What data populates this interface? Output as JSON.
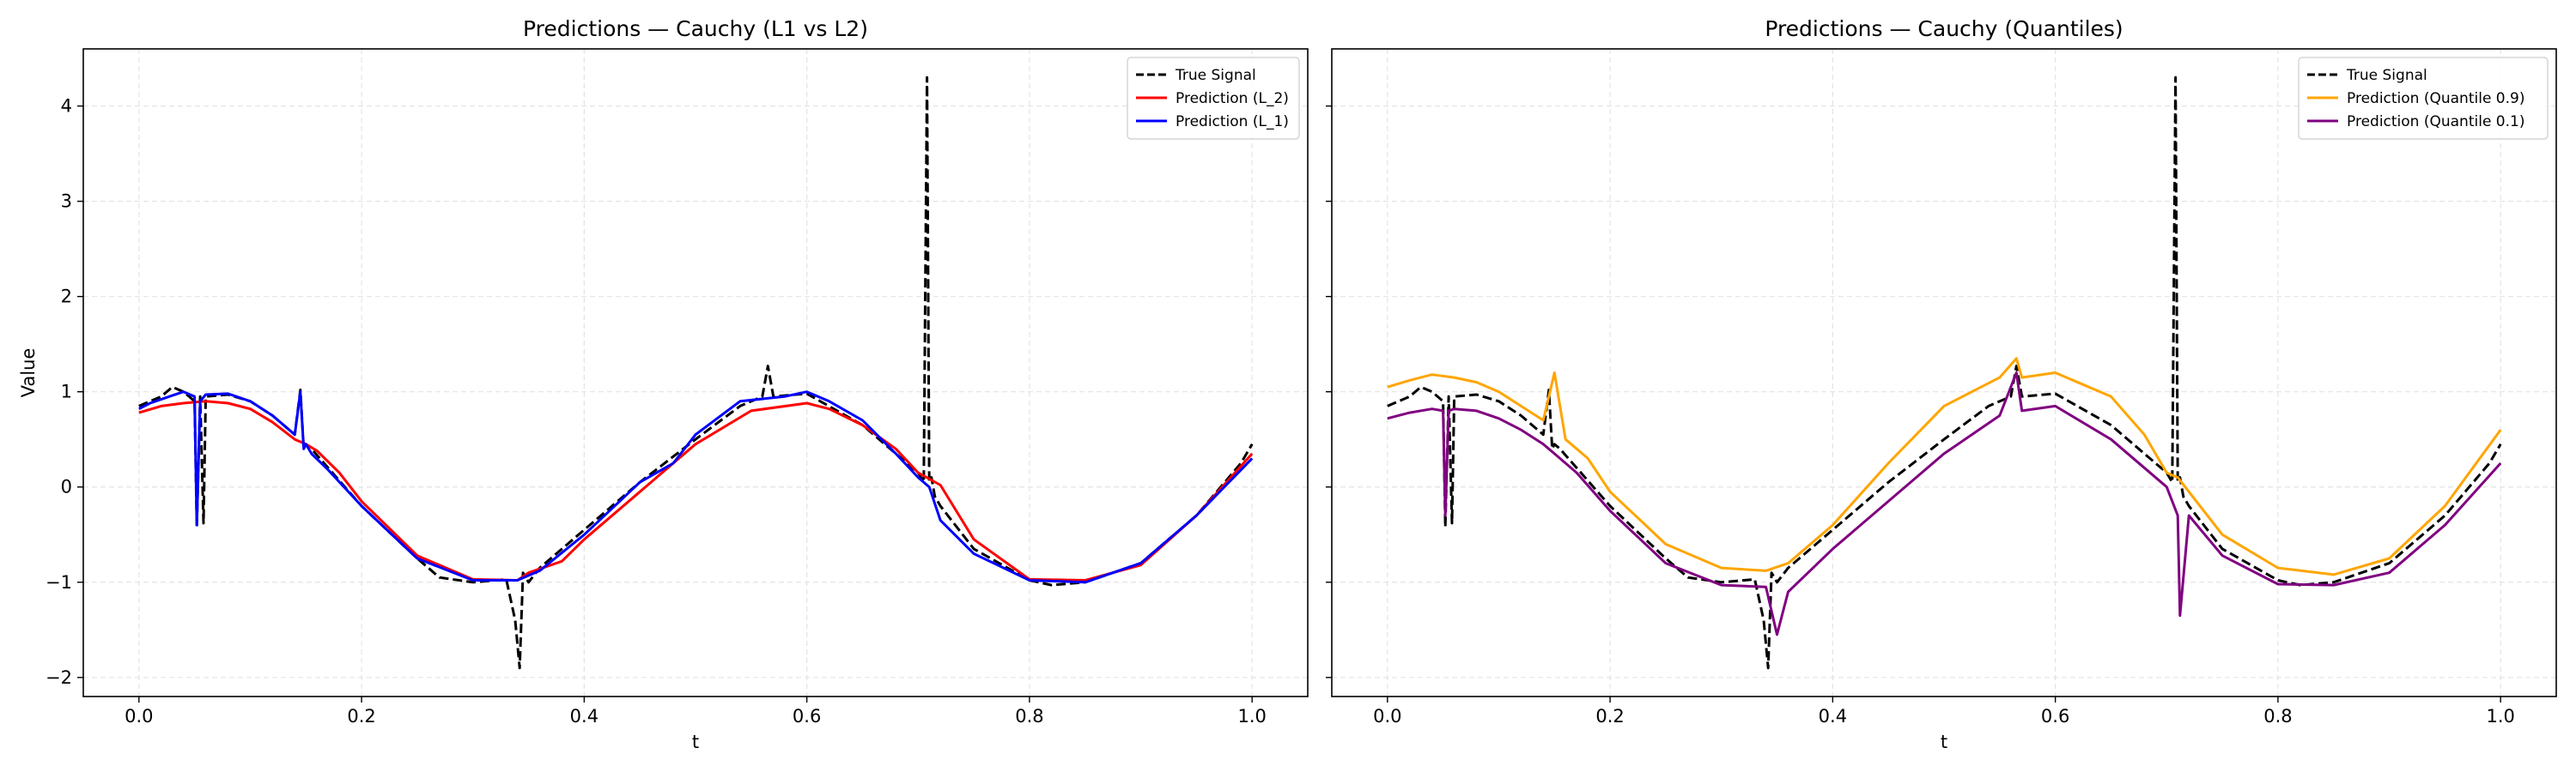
{
  "chart_data": [
    {
      "type": "line",
      "title": "Predictions — Cauchy (L1 vs L2)",
      "xlabel": "t",
      "ylabel": "Value",
      "xlim": [
        -0.05,
        1.05
      ],
      "ylim": [
        -2.2,
        4.6
      ],
      "xticks": [
        0.0,
        0.2,
        0.4,
        0.6,
        0.8,
        1.0
      ],
      "xtick_labels": [
        "0.0",
        "0.2",
        "0.4",
        "0.6",
        "0.8",
        "1.0"
      ],
      "yticks": [
        -2,
        -1,
        0,
        1,
        2,
        3,
        4
      ],
      "ytick_labels": [
        "−2",
        "−1",
        "0",
        "1",
        "2",
        "3",
        "4"
      ],
      "grid": true,
      "legend_position": "top-right",
      "series": [
        {
          "name": "True Signal",
          "color": "#000000",
          "dash": "dashed",
          "x": [
            0.0,
            0.01,
            0.02,
            0.025,
            0.03,
            0.04,
            0.045,
            0.05,
            0.052,
            0.055,
            0.058,
            0.06,
            0.08,
            0.1,
            0.12,
            0.14,
            0.145,
            0.148,
            0.15,
            0.155,
            0.17,
            0.2,
            0.25,
            0.27,
            0.3,
            0.33,
            0.338,
            0.342,
            0.345,
            0.35,
            0.36,
            0.4,
            0.45,
            0.5,
            0.54,
            0.56,
            0.565,
            0.57,
            0.6,
            0.65,
            0.7,
            0.705,
            0.708,
            0.71,
            0.712,
            0.715,
            0.72,
            0.75,
            0.8,
            0.82,
            0.85,
            0.9,
            0.95,
            0.99,
            1.0
          ],
          "y": [
            0.85,
            0.9,
            0.95,
            1.0,
            1.05,
            1.0,
            0.95,
            0.9,
            -0.42,
            0.95,
            -0.38,
            0.95,
            0.97,
            0.9,
            0.75,
            0.55,
            1.02,
            0.4,
            0.45,
            0.4,
            0.2,
            -0.2,
            -0.75,
            -0.95,
            -1.0,
            -0.97,
            -1.4,
            -1.9,
            -0.9,
            -1.0,
            -0.85,
            -0.45,
            0.05,
            0.5,
            0.85,
            0.95,
            1.27,
            0.95,
            0.98,
            0.65,
            0.15,
            0.05,
            4.3,
            0.05,
            0.1,
            -0.1,
            -0.2,
            -0.65,
            -0.98,
            -1.03,
            -1.0,
            -0.8,
            -0.3,
            0.25,
            0.45
          ]
        },
        {
          "name": "Prediction (L_2)",
          "color": "#ff0000",
          "dash": "solid",
          "x": [
            0.0,
            0.02,
            0.04,
            0.06,
            0.08,
            0.1,
            0.12,
            0.14,
            0.15,
            0.16,
            0.18,
            0.2,
            0.25,
            0.3,
            0.34,
            0.35,
            0.38,
            0.4,
            0.45,
            0.5,
            0.55,
            0.6,
            0.62,
            0.65,
            0.68,
            0.7,
            0.72,
            0.75,
            0.8,
            0.85,
            0.9,
            0.95,
            1.0
          ],
          "y": [
            0.78,
            0.85,
            0.88,
            0.9,
            0.88,
            0.82,
            0.68,
            0.5,
            0.45,
            0.38,
            0.15,
            -0.15,
            -0.72,
            -0.97,
            -0.98,
            -0.9,
            -0.78,
            -0.55,
            -0.05,
            0.45,
            0.8,
            0.88,
            0.82,
            0.65,
            0.4,
            0.15,
            0.02,
            -0.55,
            -0.97,
            -0.98,
            -0.82,
            -0.3,
            0.35
          ]
        },
        {
          "name": "Prediction (L_1)",
          "color": "#0000ff",
          "dash": "solid",
          "x": [
            0.0,
            0.01,
            0.02,
            0.03,
            0.04,
            0.05,
            0.052,
            0.055,
            0.06,
            0.08,
            0.1,
            0.12,
            0.14,
            0.145,
            0.148,
            0.15,
            0.155,
            0.17,
            0.2,
            0.25,
            0.3,
            0.34,
            0.36,
            0.4,
            0.45,
            0.48,
            0.5,
            0.54,
            0.58,
            0.6,
            0.62,
            0.65,
            0.68,
            0.7,
            0.71,
            0.72,
            0.75,
            0.8,
            0.85,
            0.9,
            0.95,
            1.0
          ],
          "y": [
            0.82,
            0.88,
            0.92,
            0.96,
            1.0,
            0.95,
            -0.4,
            0.9,
            0.97,
            0.98,
            0.9,
            0.75,
            0.55,
            1.0,
            0.4,
            0.45,
            0.35,
            0.18,
            -0.2,
            -0.75,
            -0.98,
            -0.98,
            -0.88,
            -0.5,
            0.05,
            0.25,
            0.55,
            0.9,
            0.95,
            1.0,
            0.9,
            0.7,
            0.35,
            0.1,
            0.0,
            -0.35,
            -0.7,
            -0.98,
            -1.0,
            -0.8,
            -0.3,
            0.3
          ]
        }
      ]
    },
    {
      "type": "line",
      "title": "Predictions — Cauchy (Quantiles)",
      "xlabel": "t",
      "ylabel": "",
      "xlim": [
        -0.05,
        1.05
      ],
      "ylim": [
        -2.2,
        4.6
      ],
      "xticks": [
        0.0,
        0.2,
        0.4,
        0.6,
        0.8,
        1.0
      ],
      "xtick_labels": [
        "0.0",
        "0.2",
        "0.4",
        "0.6",
        "0.8",
        "1.0"
      ],
      "yticks": [
        -2,
        -1,
        0,
        1,
        2,
        3,
        4
      ],
      "ytick_labels": [
        "",
        "",
        "",
        "",
        "",
        "",
        ""
      ],
      "grid": true,
      "legend_position": "top-right",
      "series": [
        {
          "name": "True Signal",
          "color": "#000000",
          "dash": "dashed",
          "x": [
            0.0,
            0.01,
            0.02,
            0.025,
            0.03,
            0.04,
            0.045,
            0.05,
            0.052,
            0.055,
            0.058,
            0.06,
            0.08,
            0.1,
            0.12,
            0.14,
            0.145,
            0.148,
            0.15,
            0.155,
            0.17,
            0.2,
            0.25,
            0.27,
            0.3,
            0.33,
            0.338,
            0.342,
            0.345,
            0.35,
            0.36,
            0.4,
            0.45,
            0.5,
            0.54,
            0.56,
            0.565,
            0.57,
            0.6,
            0.65,
            0.7,
            0.705,
            0.708,
            0.71,
            0.712,
            0.715,
            0.72,
            0.75,
            0.8,
            0.82,
            0.85,
            0.9,
            0.95,
            0.99,
            1.0
          ],
          "y": [
            0.85,
            0.9,
            0.95,
            1.0,
            1.05,
            1.0,
            0.95,
            0.9,
            -0.42,
            0.95,
            -0.38,
            0.95,
            0.97,
            0.9,
            0.75,
            0.55,
            1.02,
            0.4,
            0.45,
            0.4,
            0.2,
            -0.2,
            -0.75,
            -0.95,
            -1.0,
            -0.97,
            -1.4,
            -1.9,
            -0.9,
            -1.0,
            -0.85,
            -0.45,
            0.05,
            0.5,
            0.85,
            0.95,
            1.27,
            0.95,
            0.98,
            0.65,
            0.15,
            0.05,
            4.3,
            0.05,
            0.1,
            -0.1,
            -0.2,
            -0.65,
            -0.98,
            -1.03,
            -1.0,
            -0.8,
            -0.3,
            0.25,
            0.45
          ]
        },
        {
          "name": "Prediction (Quantile 0.9)",
          "color": "#ffa500",
          "dash": "solid",
          "x": [
            0.0,
            0.02,
            0.04,
            0.06,
            0.08,
            0.1,
            0.12,
            0.14,
            0.15,
            0.16,
            0.18,
            0.2,
            0.25,
            0.3,
            0.34,
            0.36,
            0.4,
            0.45,
            0.5,
            0.55,
            0.565,
            0.57,
            0.6,
            0.65,
            0.68,
            0.7,
            0.71,
            0.72,
            0.75,
            0.8,
            0.85,
            0.9,
            0.95,
            1.0
          ],
          "y": [
            1.05,
            1.12,
            1.18,
            1.15,
            1.1,
            1.0,
            0.85,
            0.7,
            1.2,
            0.5,
            0.3,
            -0.05,
            -0.6,
            -0.85,
            -0.88,
            -0.8,
            -0.4,
            0.25,
            0.85,
            1.15,
            1.35,
            1.15,
            1.2,
            0.95,
            0.55,
            0.15,
            0.1,
            -0.05,
            -0.5,
            -0.85,
            -0.92,
            -0.75,
            -0.2,
            0.6
          ]
        },
        {
          "name": "Prediction (Quantile 0.1)",
          "color": "#800080",
          "dash": "solid",
          "x": [
            0.0,
            0.02,
            0.04,
            0.05,
            0.052,
            0.055,
            0.06,
            0.08,
            0.1,
            0.12,
            0.14,
            0.15,
            0.17,
            0.2,
            0.25,
            0.3,
            0.34,
            0.35,
            0.36,
            0.4,
            0.45,
            0.5,
            0.55,
            0.565,
            0.57,
            0.6,
            0.65,
            0.7,
            0.71,
            0.712,
            0.72,
            0.75,
            0.8,
            0.85,
            0.9,
            0.95,
            1.0
          ],
          "y": [
            0.72,
            0.78,
            0.82,
            0.8,
            -0.3,
            0.8,
            0.82,
            0.8,
            0.72,
            0.6,
            0.45,
            0.35,
            0.15,
            -0.25,
            -0.8,
            -1.03,
            -1.05,
            -1.55,
            -1.1,
            -0.65,
            -0.15,
            0.35,
            0.75,
            1.2,
            0.8,
            0.85,
            0.5,
            0.0,
            -0.3,
            -1.35,
            -0.3,
            -0.72,
            -1.02,
            -1.03,
            -0.9,
            -0.4,
            0.25
          ]
        }
      ]
    }
  ]
}
